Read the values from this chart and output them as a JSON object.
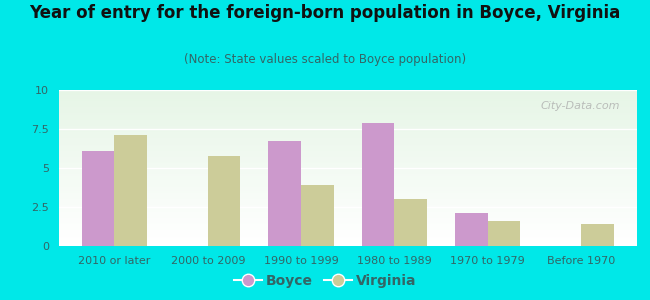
{
  "title": "Year of entry for the foreign-born population in Boyce, Virginia",
  "subtitle": "(Note: State values scaled to Boyce population)",
  "categories": [
    "2010 or later",
    "2000 to 2009",
    "1990 to 1999",
    "1980 to 1989",
    "1970 to 1979",
    "Before 1970"
  ],
  "boyce_values": [
    6.1,
    0.0,
    6.7,
    7.9,
    2.1,
    0.0
  ],
  "virginia_values": [
    7.1,
    5.8,
    3.9,
    3.0,
    1.6,
    1.4
  ],
  "boyce_color": "#cc99cc",
  "virginia_color": "#cccc99",
  "ylim": [
    0,
    10
  ],
  "yticks": [
    0,
    2.5,
    5.0,
    7.5,
    10
  ],
  "ytick_labels": [
    "0",
    "2.5",
    "5",
    "7.5",
    "10"
  ],
  "background_color": "#00e8e8",
  "bar_width": 0.35,
  "legend_boyce": "Boyce",
  "legend_virginia": "Virginia",
  "watermark": "City-Data.com",
  "title_fontsize": 12,
  "subtitle_fontsize": 8.5,
  "tick_fontsize": 8,
  "legend_fontsize": 10
}
